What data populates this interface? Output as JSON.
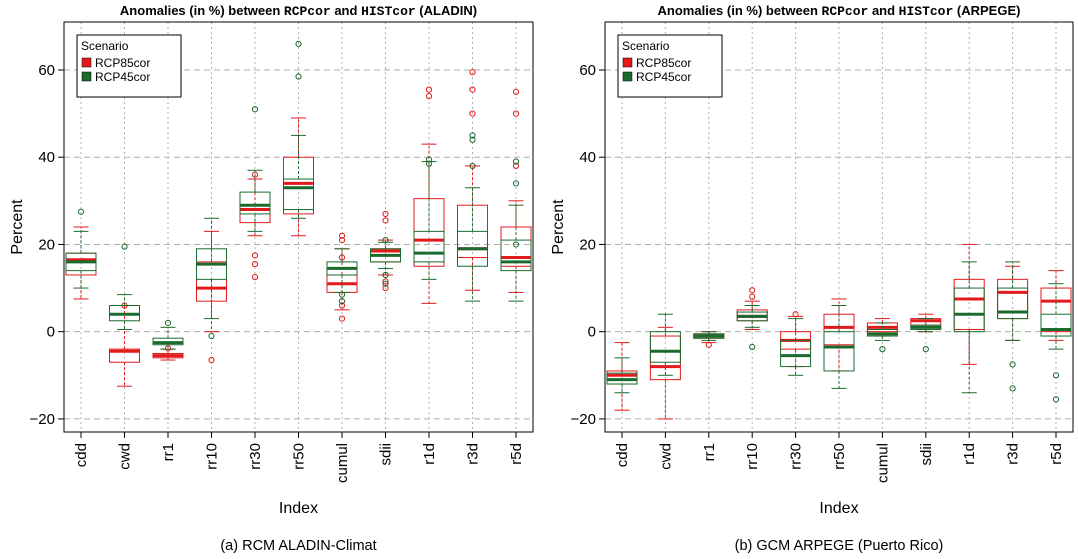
{
  "colors": {
    "RCP85cor": "#e31a1c",
    "RCP45cor": "#1b6b2e",
    "grid": "#b0b0b0"
  },
  "chart_data": [
    {
      "type": "box",
      "title_parts": [
        "Anomalies (in %)  between ",
        "RCPcor",
        " and ",
        "HISTcor",
        " (ALADIN)"
      ],
      "caption": "(a) RCM ALADIN-Climat",
      "xlabel": "Index",
      "ylabel": "Percent",
      "ylim": [
        -23,
        71
      ],
      "yticks": [
        -20,
        0,
        20,
        40,
        60
      ],
      "ytick_labels": [
        "−20",
        "0",
        "20",
        "40",
        "60"
      ],
      "hgrid": [
        -20,
        0,
        20,
        40,
        60
      ],
      "legend": {
        "title": "Scenario",
        "position": "top-left"
      },
      "categories": [
        "cdd",
        "cwd",
        "rr1",
        "rr10",
        "rr30",
        "rr50",
        "cumul",
        "sdii",
        "r1d",
        "r3d",
        "r5d"
      ],
      "series": [
        {
          "name": "RCP85cor",
          "color": "#e31a1c",
          "boxes": [
            {
              "wlo": 7.5,
              "q1": 13,
              "med": 16.5,
              "q3": 18,
              "whi": 24,
              "out": []
            },
            {
              "wlo": -12.5,
              "q1": -7,
              "med": -4.5,
              "q3": -4,
              "whi": 6,
              "out": [
                6
              ]
            },
            {
              "wlo": -6.5,
              "q1": -6,
              "med": -5.5,
              "q3": -5,
              "whi": -4,
              "out": [
                -3.8
              ]
            },
            {
              "wlo": 0,
              "q1": 7,
              "med": 10,
              "q3": 16,
              "whi": 23,
              "out": [
                -6.5
              ]
            },
            {
              "wlo": 22,
              "q1": 25,
              "med": 28,
              "q3": 29,
              "whi": 35,
              "out": [
                36,
                17.5,
                15.5,
                12.5
              ]
            },
            {
              "wlo": 22,
              "q1": 27,
              "med": 34,
              "q3": 40,
              "whi": 49,
              "out": []
            },
            {
              "wlo": 5,
              "q1": 9,
              "med": 11,
              "q3": 13,
              "whi": 19,
              "out": [
                22,
                21,
                17,
                6,
                3
              ]
            },
            {
              "wlo": 13,
              "q1": 16,
              "med": 18.5,
              "q3": 19,
              "whi": 21,
              "out": [
                27,
                25.5,
                13,
                11.5,
                10
              ]
            },
            {
              "wlo": 6.5,
              "q1": 15,
              "med": 21,
              "q3": 30.5,
              "whi": 43,
              "out": [
                55.5,
                54
              ]
            },
            {
              "wlo": 9.5,
              "q1": 17,
              "med": 19,
              "q3": 29,
              "whi": 38,
              "out": [
                59.5,
                55.5,
                50
              ]
            },
            {
              "wlo": 9,
              "q1": 15,
              "med": 17,
              "q3": 24,
              "whi": 30,
              "out": [
                55,
                50,
                38
              ]
            }
          ]
        },
        {
          "name": "RCP45cor",
          "color": "#1b6b2e",
          "boxes": [
            {
              "wlo": 10,
              "q1": 14,
              "med": 16,
              "q3": 18,
              "whi": 23,
              "out": [
                27.5
              ]
            },
            {
              "wlo": 0.5,
              "q1": 2.5,
              "med": 4,
              "q3": 6,
              "whi": 8.5,
              "out": [
                19.5
              ]
            },
            {
              "wlo": -4,
              "q1": -3,
              "med": -2.5,
              "q3": -1.5,
              "whi": 1,
              "out": [
                2
              ]
            },
            {
              "wlo": 3,
              "q1": 12,
              "med": 15.5,
              "q3": 19,
              "whi": 26,
              "out": [
                -1
              ]
            },
            {
              "wlo": 23,
              "q1": 27,
              "med": 29,
              "q3": 32,
              "whi": 37,
              "out": [
                51
              ]
            },
            {
              "wlo": 26,
              "q1": 28,
              "med": 33,
              "q3": 35,
              "whi": 45,
              "out": [
                66,
                58.5
              ]
            },
            {
              "wlo": 9,
              "q1": 13,
              "med": 14.5,
              "q3": 16,
              "whi": 19,
              "out": [
                8.5,
                7
              ]
            },
            {
              "wlo": 14.5,
              "q1": 16,
              "med": 17.5,
              "q3": 19,
              "whi": 20.5,
              "out": [
                21,
                13,
                11
              ]
            },
            {
              "wlo": 12,
              "q1": 16,
              "med": 18,
              "q3": 23,
              "whi": 39,
              "out": [
                39.5,
                38.5
              ]
            },
            {
              "wlo": 7,
              "q1": 15,
              "med": 19,
              "q3": 23,
              "whi": 33,
              "out": [
                45,
                44,
                38
              ]
            },
            {
              "wlo": 7,
              "q1": 14,
              "med": 16,
              "q3": 21,
              "whi": 29,
              "out": [
                39,
                34,
                20
              ]
            }
          ]
        }
      ]
    },
    {
      "type": "box",
      "title_parts": [
        "Anomalies (in %)  between ",
        "RCPcor",
        " and ",
        "HISTcor",
        " (ARPEGE)"
      ],
      "caption": "(b) GCM ARPEGE (Puerto Rico)",
      "xlabel": "Index",
      "ylabel": "Percent",
      "ylim": [
        -23,
        71
      ],
      "yticks": [
        -20,
        0,
        20,
        40,
        60
      ],
      "ytick_labels": [
        "−20",
        "0",
        "20",
        "40",
        "60"
      ],
      "hgrid": [
        -20,
        0,
        20,
        40,
        60
      ],
      "legend": {
        "title": "Scenario",
        "position": "top-left"
      },
      "categories": [
        "cdd",
        "cwd",
        "rr1",
        "rr10",
        "rr30",
        "rr50",
        "cumul",
        "sdii",
        "r1d",
        "r3d",
        "r5d"
      ],
      "series": [
        {
          "name": "RCP85cor",
          "color": "#e31a1c",
          "boxes": [
            {
              "wlo": -18,
              "q1": -12,
              "med": -10,
              "q3": -9,
              "whi": -2.5,
              "out": []
            },
            {
              "wlo": -20,
              "q1": -11,
              "med": -8,
              "q3": -1,
              "whi": 1,
              "out": []
            },
            {
              "wlo": -2.5,
              "q1": -1.5,
              "med": -1,
              "q3": -0.5,
              "whi": 0,
              "out": [
                -3
              ]
            },
            {
              "wlo": 0.5,
              "q1": 2.5,
              "med": 3.5,
              "q3": 5,
              "whi": 7,
              "out": [
                9.5,
                8
              ]
            },
            {
              "wlo": -8,
              "q1": -4,
              "med": -2,
              "q3": 0,
              "whi": 3.5,
              "out": [
                4
              ]
            },
            {
              "wlo": -9,
              "q1": -3,
              "med": 1,
              "q3": 4,
              "whi": 7.5,
              "out": []
            },
            {
              "wlo": -1,
              "q1": 0,
              "med": 1,
              "q3": 2,
              "whi": 3,
              "out": []
            },
            {
              "wlo": 0,
              "q1": 1.5,
              "med": 2.5,
              "q3": 3,
              "whi": 4,
              "out": []
            },
            {
              "wlo": -7.5,
              "q1": 0.5,
              "med": 7.5,
              "q3": 12,
              "whi": 20,
              "out": []
            },
            {
              "wlo": -2,
              "q1": 3,
              "med": 9,
              "q3": 12,
              "whi": 15,
              "out": []
            },
            {
              "wlo": -2,
              "q1": 0,
              "med": 7,
              "q3": 10,
              "whi": 14,
              "out": []
            }
          ]
        },
        {
          "name": "RCP45cor",
          "color": "#1b6b2e",
          "boxes": [
            {
              "wlo": -14,
              "q1": -12,
              "med": -11,
              "q3": -9.5,
              "whi": -6,
              "out": []
            },
            {
              "wlo": -10,
              "q1": -7,
              "med": -4.5,
              "q3": 0,
              "whi": 4,
              "out": []
            },
            {
              "wlo": -2,
              "q1": -1.5,
              "med": -1,
              "q3": -0.5,
              "whi": 0,
              "out": []
            },
            {
              "wlo": 1,
              "q1": 2.5,
              "med": 3.5,
              "q3": 4.5,
              "whi": 6,
              "out": [
                -3.5
              ]
            },
            {
              "wlo": -10,
              "q1": -8,
              "med": -5.5,
              "q3": -2,
              "whi": 3,
              "out": []
            },
            {
              "wlo": -13,
              "q1": -9,
              "med": -3.5,
              "q3": 0,
              "whi": 6,
              "out": []
            },
            {
              "wlo": -2,
              "q1": -1,
              "med": -0.5,
              "q3": 0.5,
              "whi": 2,
              "out": [
                -4
              ]
            },
            {
              "wlo": 0,
              "q1": 0.5,
              "med": 1,
              "q3": 1.5,
              "whi": 3,
              "out": [
                -4
              ]
            },
            {
              "wlo": -14,
              "q1": 0,
              "med": 4,
              "q3": 10,
              "whi": 16,
              "out": []
            },
            {
              "wlo": -2,
              "q1": 3,
              "med": 4.5,
              "q3": 10,
              "whi": 16,
              "out": [
                -7.5,
                -13
              ]
            },
            {
              "wlo": -4,
              "q1": -1,
              "med": 0.5,
              "q3": 4,
              "whi": 11,
              "out": [
                -10,
                -15.5
              ]
            }
          ]
        }
      ]
    }
  ]
}
